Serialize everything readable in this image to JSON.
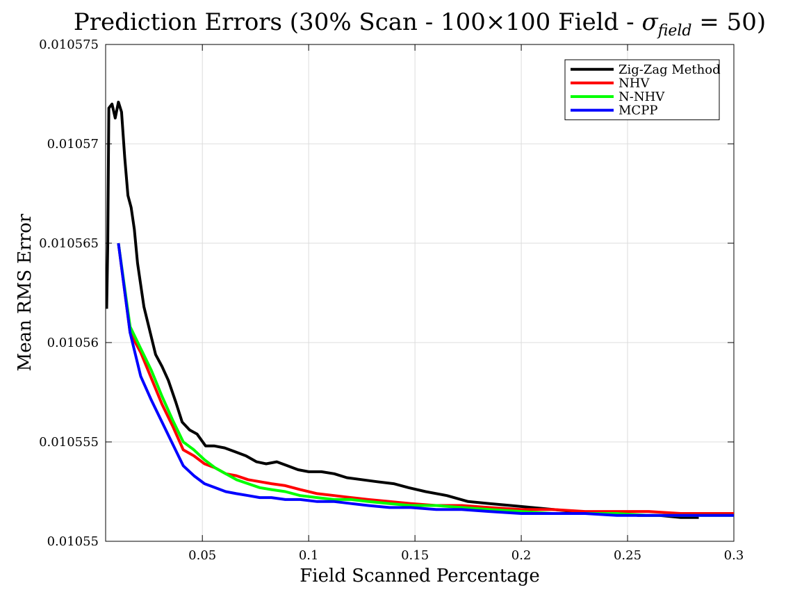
{
  "chart_data": {
    "type": "line",
    "title_main": "Prediction Errors (30% Scan - 100×100 Field - ",
    "title_sigma": "σ",
    "title_sub": "field",
    "title_tail": " = 50)",
    "xlabel": "Field Scanned Percentage",
    "ylabel": "Mean RMS Error",
    "xlim": [
      0.0045,
      0.3
    ],
    "ylim": [
      0.01055,
      0.010575
    ],
    "xticks": [
      0.05,
      0.1,
      0.15,
      0.2,
      0.25,
      0.3
    ],
    "xtick_labels": [
      "0.05",
      "0.1",
      "0.15",
      "0.2",
      "0.25",
      "0.3"
    ],
    "yticks": [
      0.01055,
      0.010555,
      0.01056,
      0.010565,
      0.01057,
      0.010575
    ],
    "ytick_labels": [
      "0.01055",
      "0.010555",
      "0.01056",
      "0.010565",
      "0.01057",
      "0.010575"
    ],
    "grid": true,
    "legend_position": "top-right",
    "series": [
      {
        "name": "Zig-Zag Method",
        "color": "#000000",
        "x": [
          0.005,
          0.0055,
          0.006,
          0.0075,
          0.009,
          0.0105,
          0.012,
          0.0135,
          0.015,
          0.0165,
          0.018,
          0.0195,
          0.0225,
          0.0255,
          0.028,
          0.031,
          0.034,
          0.0375,
          0.0405,
          0.044,
          0.0475,
          0.0515,
          0.0555,
          0.0605,
          0.0655,
          0.0705,
          0.0755,
          0.08,
          0.085,
          0.09,
          0.095,
          0.1,
          0.106,
          0.112,
          0.118,
          0.125,
          0.132,
          0.14,
          0.147,
          0.155,
          0.165,
          0.175,
          0.185,
          0.195,
          0.205,
          0.215,
          0.225,
          0.235,
          0.245,
          0.255,
          0.265,
          0.275,
          0.2835
        ],
        "y": [
          0.0105617,
          0.010565,
          0.0105718,
          0.010572,
          0.0105713,
          0.0105721,
          0.0105716,
          0.0105693,
          0.0105674,
          0.0105668,
          0.0105657,
          0.010564,
          0.0105618,
          0.0105605,
          0.0105594,
          0.0105588,
          0.0105581,
          0.010557,
          0.010556,
          0.0105556,
          0.0105554,
          0.0105548,
          0.0105548,
          0.0105547,
          0.0105545,
          0.0105543,
          0.010554,
          0.0105539,
          0.010554,
          0.0105538,
          0.0105536,
          0.0105535,
          0.0105535,
          0.0105534,
          0.0105532,
          0.0105531,
          0.010553,
          0.0105529,
          0.0105527,
          0.0105525,
          0.0105523,
          0.010552,
          0.0105519,
          0.0105518,
          0.0105517,
          0.0105516,
          0.0105515,
          0.0105514,
          0.0105514,
          0.0105513,
          0.0105513,
          0.0105512,
          0.0105512
        ]
      },
      {
        "name": "NHV",
        "color": "#ff0000",
        "x": [
          0.0105,
          0.016,
          0.021,
          0.026,
          0.031,
          0.036,
          0.041,
          0.046,
          0.051,
          0.056,
          0.061,
          0.066,
          0.0715,
          0.077,
          0.0825,
          0.089,
          0.096,
          0.104,
          0.112,
          0.12,
          0.128,
          0.138,
          0.148,
          0.16,
          0.172,
          0.185,
          0.2,
          0.215,
          0.23,
          0.245,
          0.26,
          0.275,
          0.29,
          0.3
        ],
        "y": [
          0.010565,
          0.0105605,
          0.0105595,
          0.0105582,
          0.0105569,
          0.0105558,
          0.0105546,
          0.0105543,
          0.0105539,
          0.0105537,
          0.0105534,
          0.0105533,
          0.0105531,
          0.010553,
          0.0105529,
          0.0105528,
          0.0105526,
          0.0105524,
          0.0105523,
          0.0105522,
          0.0105521,
          0.010552,
          0.0105519,
          0.0105518,
          0.0105518,
          0.0105517,
          0.0105516,
          0.0105516,
          0.0105515,
          0.0105515,
          0.0105515,
          0.0105514,
          0.0105514,
          0.0105514
        ]
      },
      {
        "name": "N-NHV",
        "color": "#00ff00",
        "x": [
          0.0105,
          0.016,
          0.021,
          0.026,
          0.031,
          0.036,
          0.041,
          0.046,
          0.051,
          0.056,
          0.061,
          0.066,
          0.0715,
          0.077,
          0.0825,
          0.089,
          0.096,
          0.104,
          0.112,
          0.12,
          0.128,
          0.138,
          0.148,
          0.16,
          0.172,
          0.185,
          0.2,
          0.215,
          0.23,
          0.245,
          0.26,
          0.275,
          0.29,
          0.3
        ],
        "y": [
          0.010565,
          0.0105608,
          0.0105597,
          0.0105586,
          0.0105573,
          0.0105561,
          0.010555,
          0.0105546,
          0.0105541,
          0.0105537,
          0.0105534,
          0.0105531,
          0.0105529,
          0.0105527,
          0.0105526,
          0.0105525,
          0.0105523,
          0.0105522,
          0.0105521,
          0.0105521,
          0.010552,
          0.0105519,
          0.0105518,
          0.0105518,
          0.0105517,
          0.0105516,
          0.0105515,
          0.0105514,
          0.0105514,
          0.0105514,
          0.0105513,
          0.0105513,
          0.0105513,
          0.0105513
        ]
      },
      {
        "name": "MCPP",
        "color": "#0000ff",
        "x": [
          0.0105,
          0.016,
          0.021,
          0.026,
          0.031,
          0.036,
          0.041,
          0.046,
          0.051,
          0.056,
          0.061,
          0.066,
          0.0715,
          0.077,
          0.0825,
          0.089,
          0.096,
          0.104,
          0.112,
          0.12,
          0.128,
          0.138,
          0.148,
          0.16,
          0.172,
          0.185,
          0.2,
          0.215,
          0.23,
          0.245,
          0.26,
          0.275,
          0.29,
          0.3
        ],
        "y": [
          0.010565,
          0.0105605,
          0.0105583,
          0.0105571,
          0.010556,
          0.0105549,
          0.0105538,
          0.0105533,
          0.0105529,
          0.0105527,
          0.0105525,
          0.0105524,
          0.0105523,
          0.0105522,
          0.0105522,
          0.0105521,
          0.0105521,
          0.010552,
          0.010552,
          0.0105519,
          0.0105518,
          0.0105517,
          0.0105517,
          0.0105516,
          0.0105516,
          0.0105515,
          0.0105514,
          0.0105514,
          0.0105514,
          0.0105513,
          0.0105513,
          0.0105513,
          0.0105513,
          0.0105513
        ]
      }
    ]
  }
}
